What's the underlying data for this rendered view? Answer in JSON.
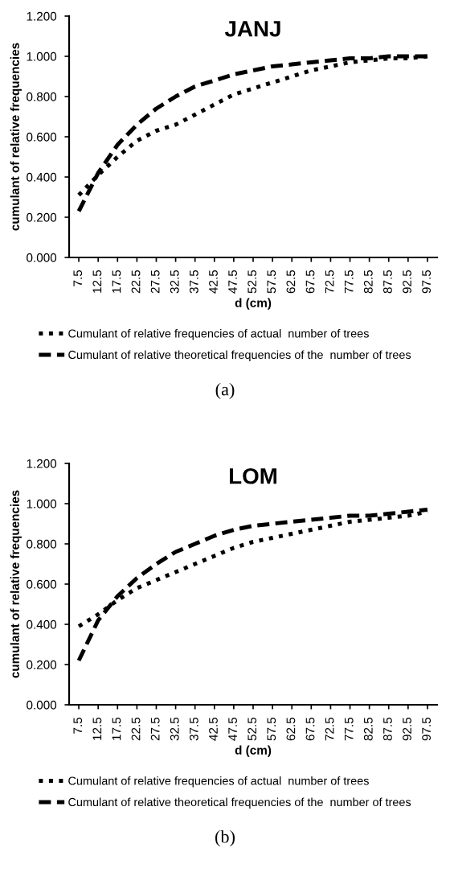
{
  "chart_data": [
    {
      "type": "line",
      "title": "JANJ",
      "xlabel": "d (cm)",
      "ylabel": "cumulant of relative frequencies",
      "categories": [
        "7.5",
        "12.5",
        "17.5",
        "22.5",
        "27.5",
        "32.5",
        "37.5",
        "42.5",
        "47.5",
        "52.5",
        "57.5",
        "62.5",
        "67.5",
        "72.5",
        "77.5",
        "82.5",
        "87.5",
        "92.5",
        "97.5"
      ],
      "series": [
        {
          "name": "Cumulant of relative frequencies of actual  number of trees",
          "color": "#000000",
          "line_style": "dotted",
          "values": [
            0.31,
            0.41,
            0.5,
            0.58,
            0.63,
            0.66,
            0.71,
            0.76,
            0.81,
            0.84,
            0.87,
            0.9,
            0.93,
            0.95,
            0.97,
            0.98,
            0.99,
            0.99,
            1.0
          ]
        },
        {
          "name": "Cumulant of relative theoretical frequencies of the  number of trees",
          "color": "#000000",
          "line_style": "dashed",
          "values": [
            0.23,
            0.42,
            0.56,
            0.66,
            0.74,
            0.8,
            0.85,
            0.88,
            0.91,
            0.93,
            0.95,
            0.96,
            0.97,
            0.98,
            0.99,
            0.99,
            1.0,
            1.0,
            1.0
          ]
        }
      ],
      "ylim": [
        0,
        1.2
      ],
      "yticks": [
        {
          "value": 0,
          "label": "0.000"
        },
        {
          "value": 0.2,
          "label": "0.200"
        },
        {
          "value": 0.4,
          "label": "0.400"
        },
        {
          "value": 0.6,
          "label": "0.600"
        },
        {
          "value": 0.8,
          "label": "0.800"
        },
        {
          "value": 1.0,
          "label": "1.000"
        },
        {
          "value": 1.2,
          "label": "1.200"
        }
      ],
      "grid": false,
      "legend": "bottom",
      "annotations": [
        "(a)"
      ]
    },
    {
      "type": "line",
      "title": "LOM",
      "xlabel": "d (cm)",
      "ylabel": "cumulant of relative frequencies",
      "categories": [
        "7.5",
        "12.5",
        "17.5",
        "22.5",
        "27.5",
        "32.5",
        "37.5",
        "42.5",
        "47.5",
        "52.5",
        "57.5",
        "62.5",
        "67.5",
        "72.5",
        "77.5",
        "82.5",
        "87.5",
        "92.5",
        "97.5"
      ],
      "series": [
        {
          "name": "Cumulant of relative frequencies of actual  number of trees",
          "color": "#000000",
          "line_style": "dotted",
          "values": [
            0.39,
            0.45,
            0.52,
            0.58,
            0.62,
            0.66,
            0.7,
            0.74,
            0.78,
            0.81,
            0.83,
            0.85,
            0.87,
            0.89,
            0.91,
            0.92,
            0.93,
            0.94,
            0.96
          ]
        },
        {
          "name": "Cumulant of relative theoretical frequencies of the  number of trees",
          "color": "#000000",
          "line_style": "dashed",
          "values": [
            0.22,
            0.42,
            0.54,
            0.63,
            0.7,
            0.76,
            0.8,
            0.84,
            0.87,
            0.89,
            0.9,
            0.91,
            0.92,
            0.93,
            0.94,
            0.94,
            0.95,
            0.96,
            0.97
          ]
        }
      ],
      "ylim": [
        0,
        1.2
      ],
      "yticks": [
        {
          "value": 0,
          "label": "0.000"
        },
        {
          "value": 0.2,
          "label": "0.200"
        },
        {
          "value": 0.4,
          "label": "0.400"
        },
        {
          "value": 0.6,
          "label": "0.600"
        },
        {
          "value": 0.8,
          "label": "0.800"
        },
        {
          "value": 1.0,
          "label": "1.000"
        },
        {
          "value": 1.2,
          "label": "1.200"
        }
      ],
      "grid": false,
      "legend": "bottom",
      "annotations": [
        "(b)"
      ]
    }
  ]
}
